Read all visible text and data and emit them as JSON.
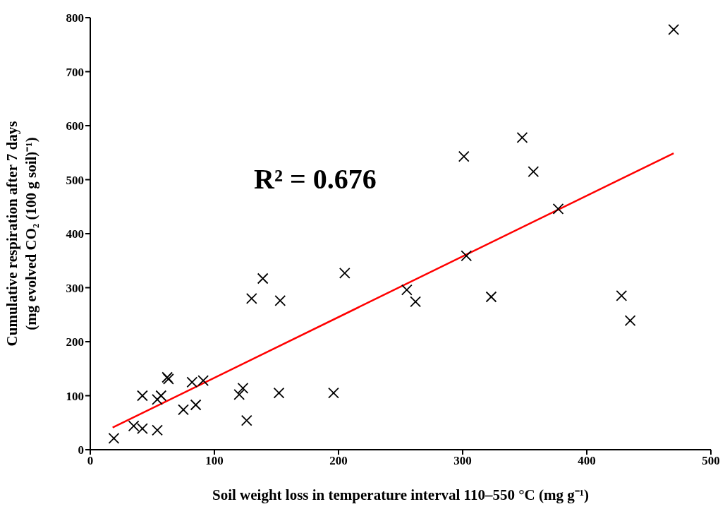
{
  "chart_data": {
    "type": "scatter",
    "xlabel": "Soil weight loss in temperature interval 110–550 °C (mg g⁻¹)",
    "ylabel": "Cumulative respiration after 7 days\n(mg evolved CO₂ (100 g soil)⁻¹)",
    "xlim": [
      0,
      500
    ],
    "xticks": [
      0,
      100,
      200,
      300,
      400,
      500
    ],
    "ylim": [
      0,
      800
    ],
    "yticks": [
      0,
      100,
      200,
      300,
      400,
      500,
      600,
      700,
      800
    ],
    "marker": "cross",
    "annotations": [
      "R² = 0.676"
    ],
    "series": [
      {
        "color": "#000000",
        "x": [
          19,
          35,
          42,
          54,
          42,
          54,
          57,
          62,
          63,
          75,
          85,
          82,
          91,
          120,
          123,
          126,
          130,
          139,
          153,
          152,
          196,
          205,
          255,
          262,
          301,
          303,
          323,
          348,
          357,
          377,
          428,
          435,
          470
        ],
        "values": [
          21,
          44,
          39,
          36,
          100,
          93,
          100,
          134,
          131,
          74,
          83,
          125,
          128,
          102,
          114,
          54,
          280,
          317,
          276,
          105,
          105,
          327,
          296,
          274,
          543,
          359,
          283,
          578,
          515,
          446,
          285,
          239,
          778
        ]
      },
      {
        "type": "line",
        "color": "#ff0000",
        "marker": "none",
        "line_style": "solid",
        "x": [
          18,
          470
        ],
        "values": [
          41,
          549
        ]
      }
    ]
  }
}
